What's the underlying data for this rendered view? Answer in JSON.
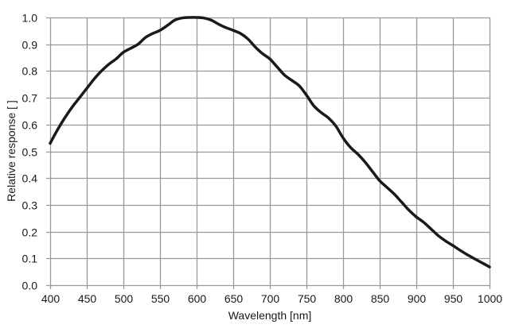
{
  "chart_data": {
    "type": "line",
    "title": "",
    "xlabel": "Wavelength [nm]",
    "ylabel": "Relative response [ ]",
    "xlim": [
      400,
      1000
    ],
    "ylim": [
      0.0,
      1.0
    ],
    "grid": true,
    "legend": null,
    "x_ticks": [
      400,
      450,
      500,
      550,
      600,
      650,
      700,
      750,
      800,
      850,
      900,
      950,
      1000
    ],
    "y_ticks": [
      "0.0",
      "0.1",
      "0.2",
      "0.3",
      "0.4",
      "0.5",
      "0.6",
      "0.7",
      "0.8",
      "0.9",
      "1.0"
    ],
    "series": [
      {
        "name": "Relative response",
        "color": "#1a1a1a",
        "x": [
          400,
          410,
          420,
          430,
          440,
          450,
          460,
          470,
          480,
          490,
          500,
          510,
          520,
          530,
          540,
          550,
          560,
          570,
          580,
          590,
          600,
          610,
          620,
          630,
          640,
          650,
          660,
          670,
          680,
          690,
          700,
          710,
          720,
          730,
          740,
          750,
          760,
          770,
          780,
          790,
          800,
          810,
          820,
          830,
          840,
          850,
          860,
          870,
          880,
          890,
          900,
          910,
          920,
          930,
          940,
          950,
          960,
          970,
          980,
          990,
          1000
        ],
        "values": [
          0.53,
          0.58,
          0.625,
          0.665,
          0.7,
          0.735,
          0.77,
          0.8,
          0.825,
          0.845,
          0.87,
          0.885,
          0.9,
          0.925,
          0.94,
          0.952,
          0.97,
          0.99,
          0.998,
          1.0,
          1.0,
          0.998,
          0.99,
          0.975,
          0.962,
          0.952,
          0.94,
          0.92,
          0.89,
          0.865,
          0.845,
          0.815,
          0.785,
          0.765,
          0.745,
          0.71,
          0.67,
          0.645,
          0.625,
          0.595,
          0.55,
          0.515,
          0.49,
          0.46,
          0.425,
          0.39,
          0.365,
          0.34,
          0.31,
          0.28,
          0.255,
          0.235,
          0.21,
          0.185,
          0.165,
          0.148,
          0.13,
          0.113,
          0.098,
          0.083,
          0.068
        ]
      }
    ]
  },
  "style": {
    "grid_color": "#999999",
    "line_color": "#1a1a1a",
    "background": "#ffffff"
  }
}
